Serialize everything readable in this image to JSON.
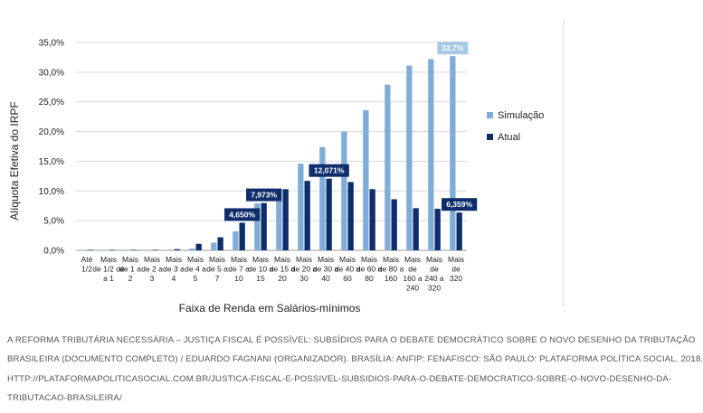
{
  "chart_data": {
    "type": "bar",
    "ylabel": "Alíquota Efetiva do IRPF",
    "xlabel": "Faixa de Renda em Salários-mínimos",
    "ylim": [
      0,
      35
    ],
    "yticks": [
      "0,0%",
      "5,0%",
      "10,0%",
      "15,0%",
      "20,0%",
      "25,0%",
      "30,0%",
      "35,0%"
    ],
    "grid": true,
    "legend_position": "right",
    "categories": [
      [
        "Até",
        "1/2"
      ],
      [
        "Mais",
        "de 1/2 de",
        "a 1"
      ],
      [
        "Mais",
        "de 1 a",
        "2"
      ],
      [
        "Mais",
        "de 2 a",
        "3"
      ],
      [
        "Mais",
        "de 3 a",
        "4"
      ],
      [
        "Mais",
        "de 4 a",
        "5"
      ],
      [
        "Mais",
        "de 5 a",
        "7"
      ],
      [
        "Mais",
        "de 7 a",
        "10"
      ],
      [
        "Mais",
        "de 10 a",
        "15"
      ],
      [
        "Mais",
        "de 15 a",
        "20"
      ],
      [
        "Mais",
        "de 20 a",
        "30"
      ],
      [
        "Mais",
        "de 30 a",
        "40"
      ],
      [
        "Mais",
        "de 40 a",
        "60"
      ],
      [
        "Mais",
        "de 60 a",
        "80"
      ],
      [
        "Mais",
        "de 80 a",
        "160"
      ],
      [
        "Mais",
        "de",
        "160 a",
        "240"
      ],
      [
        "Mais",
        "de",
        "240 a",
        "320"
      ],
      [
        "Mais",
        "de",
        "320"
      ]
    ],
    "series": [
      {
        "name": "Simulação",
        "color": "#7fadd8",
        "values": [
          0.0,
          0.0,
          0.0,
          0.0,
          0.1,
          0.3,
          1.3,
          3.2,
          7.9,
          10.3,
          14.6,
          17.4,
          20.0,
          23.6,
          27.9,
          31.1,
          32.2,
          32.7
        ]
      },
      {
        "name": "Atual",
        "color": "#0d2d6b",
        "values": [
          0.0,
          0.0,
          0.0,
          0.0,
          0.2,
          1.1,
          2.2,
          4.65,
          7.973,
          10.3,
          11.7,
          12.071,
          11.5,
          10.3,
          8.6,
          7.1,
          7.0,
          6.359
        ]
      }
    ],
    "data_labels": [
      {
        "series": 1,
        "index": 7,
        "text": "4,650%"
      },
      {
        "series": 1,
        "index": 8,
        "text": "7,973%"
      },
      {
        "series": 1,
        "index": 11,
        "text": "12,071%"
      },
      {
        "series": 1,
        "index": 17,
        "text": "6,359%"
      },
      {
        "series": 0,
        "index": 17,
        "text": "32,7%"
      }
    ]
  },
  "caption": {
    "lines": [
      "A REFORMA TRIBUTÁRIA NECESSÁRIA – JUSTIÇA FISCAL É POSSÍVEL: SUBSÍDIOS PARA O DEBATE DEMOCRÁTICO SOBRE O NOVO DESENHO DA TRIBUTAÇÃO",
      "BRASILEIRA (DOCUMENTO COMPLETO) / EDUARDO FAGNANI (ORGANIZADOR). BRASÍLIA: ANFIP: FENAFISCO: SÃO PAULO: PLATAFORMA POLÍTICA SOCIAL. 2018.",
      "HTTP://PLATAFORMAPOLITICASOCIAL.COM.BR/JUSTICA-FISCAL-E-POSSIVEL-SUBSIDIOS-PARA-O-DEBATE-DEMOCRATICO-SOBRE-O-NOVO-DESENHO-DA-",
      "TRIBUTACAO-BRASILEIRA/"
    ]
  }
}
